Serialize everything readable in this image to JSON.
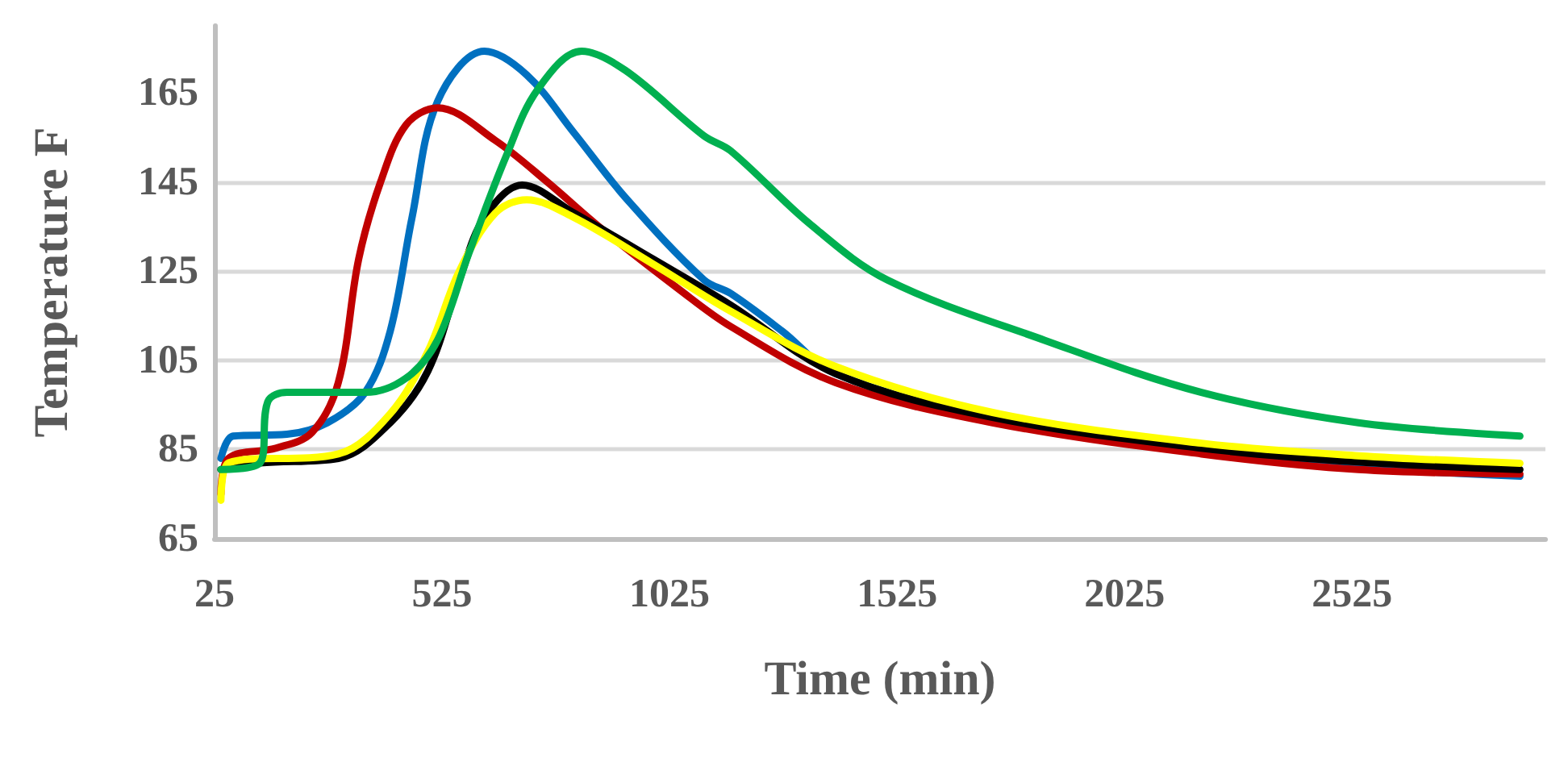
{
  "chart_data": {
    "type": "line",
    "xlabel": "Time (min)",
    "ylabel": "Temperature F",
    "xlim": [
      25,
      2950
    ],
    "xticks": [
      25,
      525,
      1025,
      1525,
      2025,
      2525
    ],
    "ylim": [
      65,
      180
    ],
    "yticks": [
      65,
      85,
      105,
      125,
      145,
      165
    ],
    "grid": "y",
    "marker": "none",
    "line_style": "solid",
    "series": [
      {
        "color": "#0070c0",
        "x": [
          39,
          66,
          184,
          273,
          356,
          411,
          459,
          515,
          618,
          711,
          815,
          928,
          1101,
          1159,
          1273,
          1390,
          1735,
          2194,
          2539,
          2894
        ],
        "values": [
          83,
          88,
          88.4,
          91,
          97.8,
          111.5,
          137,
          163,
          174.3,
          169,
          156,
          141.5,
          123,
          120,
          111.5,
          102,
          92,
          84.5,
          81,
          79
        ]
      },
      {
        "color": "#c00000",
        "x": [
          39,
          56,
          160,
          239,
          297,
          342,
          390,
          446,
          515,
          642,
          756,
          873,
          1046,
          1159,
          1390,
          1735,
          2194,
          2539,
          2894
        ],
        "values": [
          75,
          83,
          85.3,
          88.8,
          100,
          127.8,
          145,
          157.8,
          161.6,
          154.3,
          145,
          134.7,
          120.9,
          112.6,
          100,
          91,
          84,
          80.5,
          79.5
        ]
      },
      {
        "color": "#000000",
        "x": [
          39,
          125,
          297,
          411,
          494,
          563,
          618,
          701,
          815,
          987,
          1159,
          1390,
          1735,
          2194,
          2539,
          2894
        ],
        "values": [
          80.5,
          82,
          83,
          91,
          102.6,
          123,
          137,
          144.3,
          138,
          127.8,
          117.4,
          102,
          92.2,
          85.3,
          82.2,
          80.5
        ]
      },
      {
        "color": "#ffff00",
        "x": [
          39,
          56,
          297,
          411,
          494,
          563,
          642,
          711,
          815,
          987,
          1159,
          1390,
          1735,
          2194,
          2539,
          2894
        ],
        "values": [
          73.6,
          82,
          84,
          93,
          107,
          125,
          138,
          141,
          137,
          126.7,
          116,
          103.6,
          93.3,
          86.4,
          83.6,
          81.9
        ]
      },
      {
        "color": "#00b050",
        "x": [
          39,
          125,
          142,
          184,
          356,
          446,
          515,
          584,
          666,
          735,
          832,
          928,
          1101,
          1159,
          1332,
          1504,
          1849,
          2194,
          2539,
          2894
        ],
        "values": [
          80.5,
          82,
          95.7,
          97.8,
          97.8,
          101,
          109.5,
          129,
          150.8,
          165.7,
          174.3,
          170,
          155.3,
          152,
          135.7,
          123,
          109.5,
          97.8,
          91,
          88
        ]
      }
    ]
  }
}
